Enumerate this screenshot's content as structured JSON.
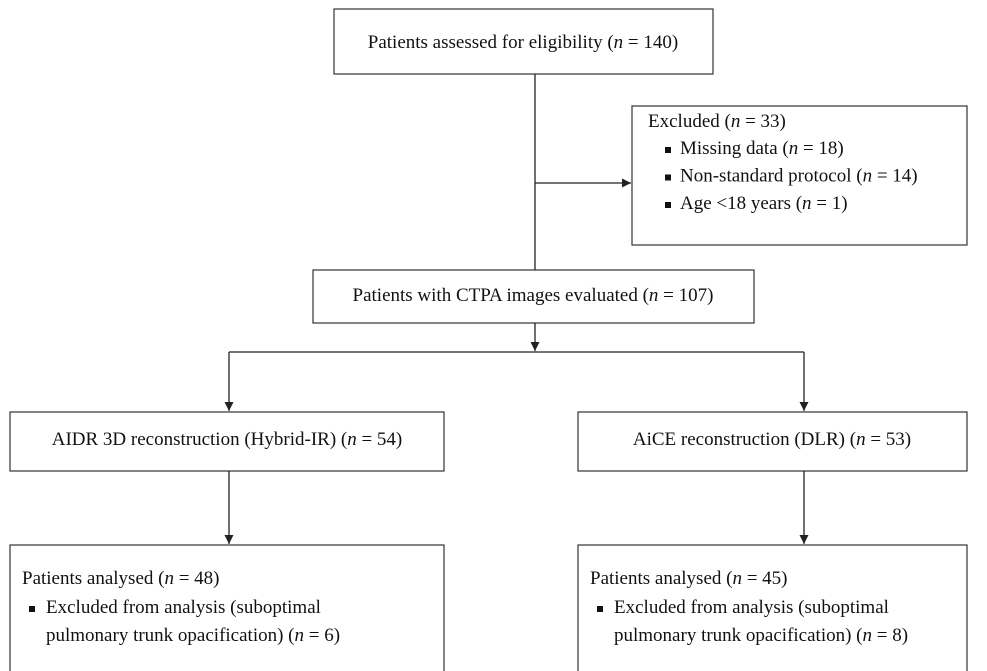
{
  "eligibility": {
    "text": [
      "Patients assessed for eligibility (",
      "n",
      " = 140)"
    ]
  },
  "excluded": {
    "title": [
      "Excluded (",
      "n",
      " = 33)"
    ],
    "items": [
      [
        [
          "Missing data (",
          "n",
          " = 18)"
        ]
      ],
      [
        [
          "Non-standard protocol (",
          "n",
          " = 14)"
        ]
      ],
      [
        [
          "Age <18 years (",
          "n",
          " = 1)"
        ]
      ]
    ]
  },
  "evaluated": {
    "text": [
      "Patients with CTPA images evaluated (",
      "n",
      " = 107)"
    ]
  },
  "arms": [
    {
      "reconstruction": [
        "AIDR 3D reconstruction (Hybrid-IR) (",
        "n",
        " = 54)"
      ],
      "analysed": {
        "title": [
          "Patients analysed (",
          "n",
          " = 48)"
        ],
        "items": [
          [
            [
              "Excluded from analysis (suboptimal"
            ],
            [
              "pulmonary trunk opacification) (",
              "n",
              " = 6)"
            ]
          ]
        ]
      }
    },
    {
      "reconstruction": [
        "AiCE reconstruction (DLR) (",
        "n",
        " = 53)"
      ],
      "analysed": {
        "title": [
          "Patients analysed (",
          "n",
          " = 45)"
        ],
        "items": [
          [
            [
              "Excluded from analysis (suboptimal"
            ],
            [
              "pulmonary trunk opacification) (",
              "n",
              " = 8)"
            ]
          ]
        ]
      }
    }
  ]
}
